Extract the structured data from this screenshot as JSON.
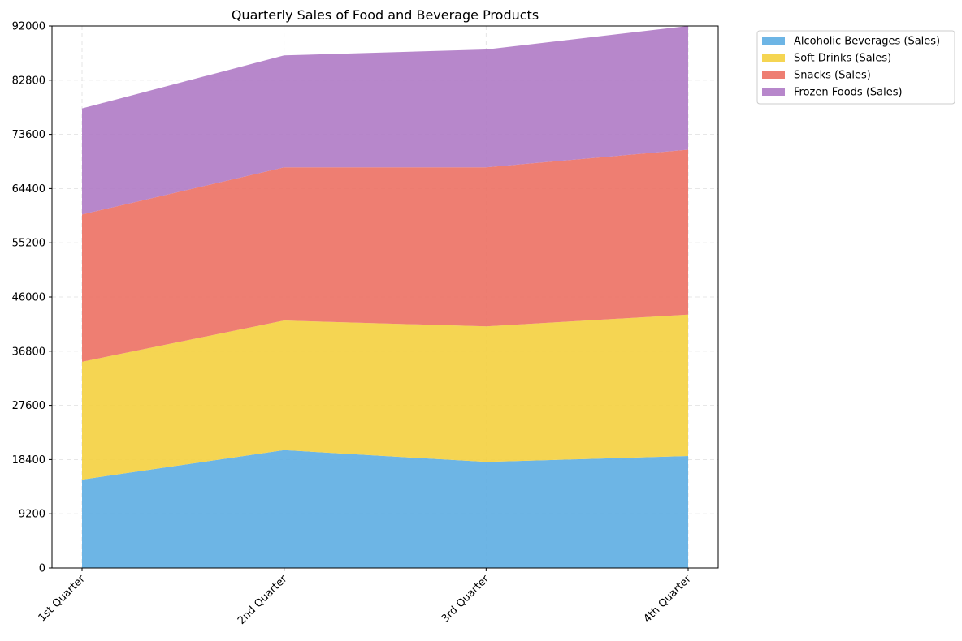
{
  "chart_data": {
    "type": "area",
    "stacked": true,
    "title": "Quarterly Sales of Food and Beverage Products",
    "xlabel": "",
    "ylabel": "",
    "categories": [
      "1st Quarter",
      "2nd Quarter",
      "3rd Quarter",
      "4th Quarter"
    ],
    "series": [
      {
        "name": "Alcoholic Beverages (Sales)",
        "color": "#5DADE2",
        "values": [
          15000,
          20000,
          18000,
          19000
        ]
      },
      {
        "name": "Soft Drinks (Sales)",
        "color": "#F4D03F",
        "values": [
          20000,
          22000,
          23000,
          24000
        ]
      },
      {
        "name": "Snacks (Sales)",
        "color": "#EC7063",
        "values": [
          25000,
          26000,
          27000,
          28000
        ]
      },
      {
        "name": "Frozen Foods (Sales)",
        "color": "#AF7AC5",
        "values": [
          18000,
          19000,
          20000,
          21000
        ]
      }
    ],
    "ylim": [
      0,
      92000
    ],
    "yticks": [
      0,
      9200,
      18400,
      27600,
      36800,
      46000,
      55200,
      64400,
      73600,
      82800,
      92000
    ],
    "grid": true,
    "legend_position": "outside-top-right"
  }
}
